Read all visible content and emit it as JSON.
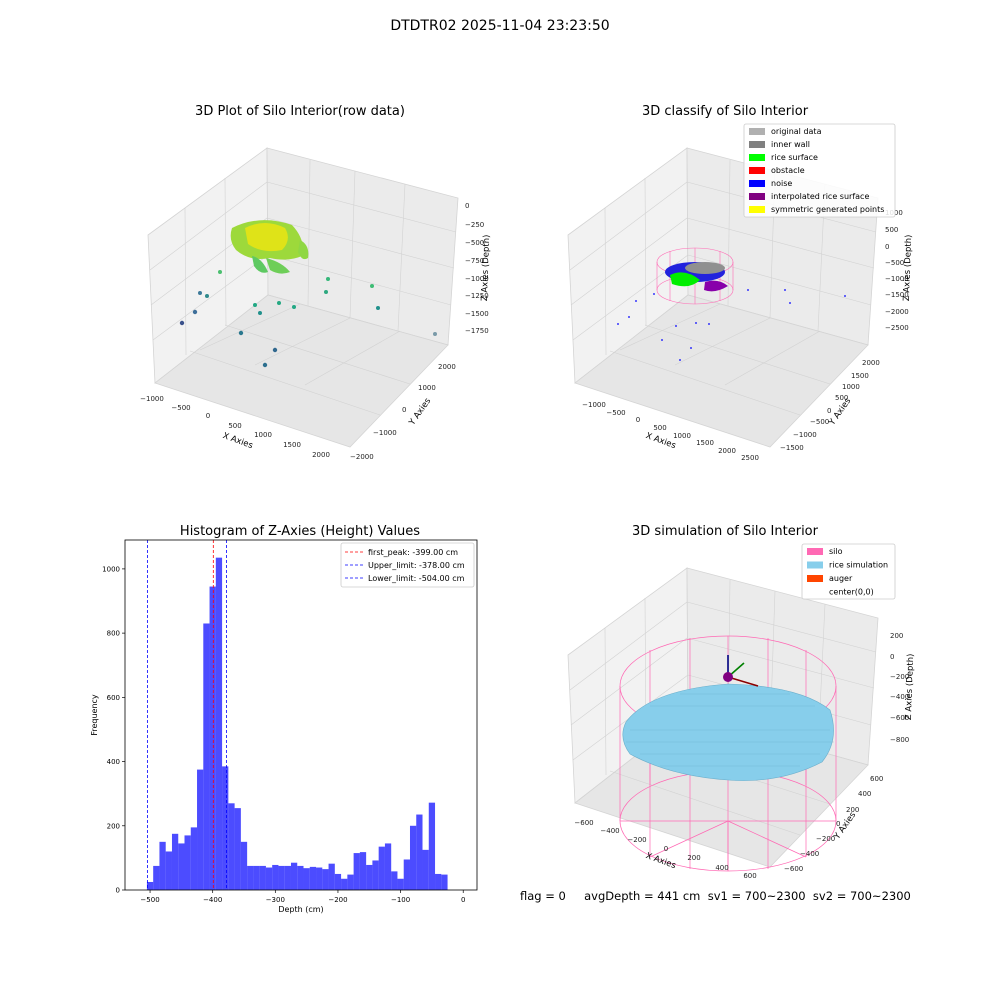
{
  "suptitle": "DTDTR02 2025-11-04 23:23:50",
  "footer": "flag = 0     avgDepth = 441 cm  sv1 = 700~2300  sv2 = 700~2300",
  "panels": {
    "raw": {
      "title": "3D Plot of Silo Interior(row data)",
      "xlabel": "X Axies",
      "ylabel": "Y Axies",
      "zlabel": "Z Axies (Depth)",
      "xticks": [
        "−1000",
        "−500",
        "0",
        "500",
        "1000",
        "1500",
        "2000"
      ],
      "yticks": [
        "2000",
        "1000",
        "0",
        "−1000",
        "−2000"
      ],
      "zticks": [
        "0",
        "−250",
        "−500",
        "−750",
        "−1000",
        "−1250",
        "−1500",
        "−1750"
      ]
    },
    "classify": {
      "title": "3D classify of Silo Interior",
      "xlabel": "X Axies",
      "ylabel": "Y Axies",
      "zlabel": "Z Axies (Depth)",
      "xticks": [
        "−1000",
        "−500",
        "0",
        "500",
        "1000",
        "1500",
        "2000",
        "2500"
      ],
      "yticks": [
        "2000",
        "1500",
        "1000",
        "500",
        "0",
        "−500",
        "−1000",
        "−1500"
      ],
      "zticks": [
        "1000",
        "500",
        "0",
        "−500",
        "−1000",
        "−1500",
        "−2000",
        "−2500"
      ],
      "legend": [
        {
          "label": "original data",
          "color": "#b0b0b0"
        },
        {
          "label": "inner wall",
          "color": "#808080"
        },
        {
          "label": "rice surface",
          "color": "#00ff00"
        },
        {
          "label": "obstacle",
          "color": "#ff0000"
        },
        {
          "label": "noise",
          "color": "#0000ff"
        },
        {
          "label": "interpolated rice surface",
          "color": "#800080"
        },
        {
          "label": "symmetric generated points",
          "color": "#ffff00"
        }
      ]
    },
    "sim": {
      "title": "3D simulation of Silo Interior",
      "xlabel": "X Axies",
      "ylabel": "Y Axies",
      "zlabel": "Z Axies (Depth)",
      "xticks": [
        "−600",
        "−400",
        "−200",
        "0",
        "200",
        "400",
        "600"
      ],
      "yticks": [
        "600",
        "400",
        "200",
        "0",
        "−200",
        "−400",
        "−600"
      ],
      "zticks": [
        "200",
        "0",
        "−200",
        "−400",
        "−600",
        "−800"
      ],
      "legend": [
        {
          "label": "silo",
          "color": "#ff69b4"
        },
        {
          "label": "rice simulation",
          "color": "#87ceeb"
        },
        {
          "label": "auger",
          "color": "#ff4500"
        },
        {
          "label": "center(0,0)",
          "color": "#ffffff"
        }
      ]
    }
  },
  "chart_data": {
    "type": "bar",
    "title": "Histogram of Z-Axies (Height) Values",
    "xlabel": "Depth (cm)",
    "ylabel": "Frequency",
    "xlim": [
      -540,
      22
    ],
    "ylim": [
      0,
      1090
    ],
    "xticks": [
      -500,
      -400,
      -300,
      -200,
      -100,
      0
    ],
    "yticks": [
      0,
      200,
      400,
      600,
      800,
      1000
    ],
    "bin_width": 10,
    "bin_start": -505,
    "values": [
      25,
      75,
      150,
      120,
      175,
      145,
      170,
      195,
      375,
      830,
      945,
      1035,
      385,
      270,
      255,
      150,
      75,
      75,
      75,
      70,
      78,
      75,
      75,
      85,
      75,
      68,
      72,
      70,
      65,
      82,
      50,
      35,
      48,
      115,
      118,
      78,
      92,
      135,
      145,
      58,
      35,
      95,
      200,
      235,
      125,
      272,
      50,
      48
    ],
    "color": "#0000ff",
    "lines": [
      {
        "label": "first_peak: -399.00 cm",
        "x": -399,
        "color": "#ff0000"
      },
      {
        "label": "Upper_limit: -378.00 cm",
        "x": -378,
        "color": "#0000ff"
      },
      {
        "label": "Lower_limit: -504.00 cm",
        "x": -504,
        "color": "#0000ff"
      }
    ]
  }
}
